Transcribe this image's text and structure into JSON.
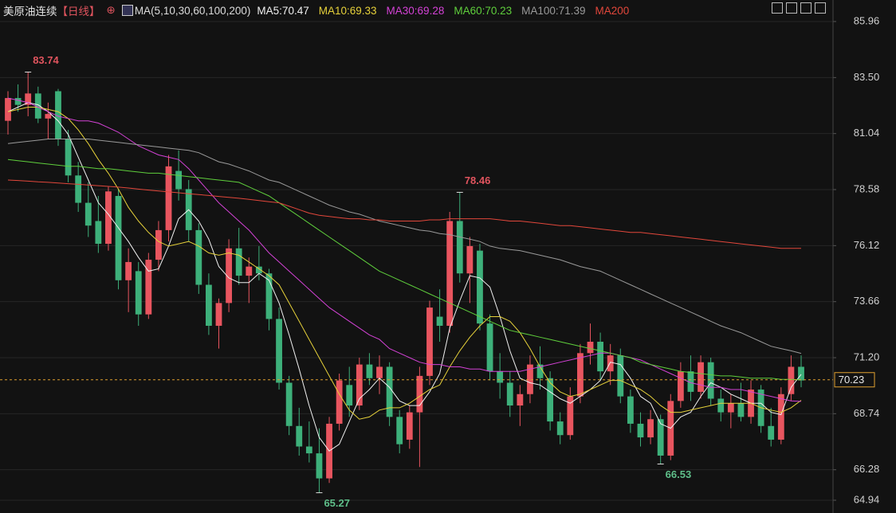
{
  "chart_data": {
    "type": "candlestick",
    "title": "美原油连续",
    "period": "【日线】",
    "indicator": "MA(5,10,30,60,100,200)",
    "up_color": "#e8555f",
    "down_color": "#3db07a",
    "ylim": [
      64.94,
      85.96
    ],
    "yticks": [
      85.96,
      {
        "value": 83.5,
        "label": "83.50"
      },
      81.04,
      78.58,
      76.12,
      73.66,
      {
        "value": 71.2,
        "label": "71.20"
      },
      68.74,
      66.28,
      64.94
    ],
    "grid": true,
    "last_price": 70.23,
    "ohlc": [
      [
        81.6,
        82.9,
        81.0,
        82.6
      ],
      [
        82.6,
        83.2,
        82.0,
        82.3
      ],
      [
        82.3,
        83.74,
        81.8,
        82.8
      ],
      [
        82.8,
        83.1,
        81.5,
        81.7
      ],
      [
        81.7,
        82.4,
        80.8,
        81.9
      ],
      [
        82.9,
        83.0,
        80.5,
        80.8
      ],
      [
        80.8,
        81.2,
        78.9,
        79.2
      ],
      [
        79.2,
        79.8,
        77.6,
        78.0
      ],
      [
        78.0,
        78.9,
        76.5,
        77.0
      ],
      [
        77.2,
        78.3,
        75.8,
        76.2
      ],
      [
        76.2,
        78.7,
        75.9,
        78.5
      ],
      [
        78.3,
        78.6,
        74.2,
        74.6
      ],
      [
        74.6,
        76.0,
        73.2,
        75.4
      ],
      [
        75.0,
        75.4,
        72.6,
        73.1
      ],
      [
        73.1,
        75.8,
        72.9,
        75.5
      ],
      [
        75.5,
        77.2,
        75.0,
        76.8
      ],
      [
        76.8,
        80.1,
        76.3,
        79.6
      ],
      [
        79.4,
        80.3,
        78.1,
        78.6
      ],
      [
        78.6,
        79.0,
        76.3,
        76.8
      ],
      [
        76.8,
        77.1,
        74.0,
        74.4
      ],
      [
        74.4,
        74.9,
        72.2,
        72.6
      ],
      [
        72.6,
        73.8,
        71.6,
        73.6
      ],
      [
        73.6,
        76.4,
        73.2,
        76.0
      ],
      [
        76.0,
        76.9,
        74.4,
        74.8
      ],
      [
        74.8,
        75.6,
        73.6,
        75.2
      ],
      [
        75.2,
        76.1,
        74.6,
        74.9
      ],
      [
        74.9,
        75.1,
        72.4,
        72.9
      ],
      [
        72.9,
        73.4,
        69.8,
        70.1
      ],
      [
        70.1,
        70.4,
        67.8,
        68.2
      ],
      [
        68.2,
        69.0,
        66.9,
        67.3
      ],
      [
        67.3,
        68.4,
        66.6,
        67.0
      ],
      [
        67.0,
        68.1,
        65.27,
        65.9
      ],
      [
        65.9,
        68.6,
        65.7,
        68.3
      ],
      [
        68.3,
        70.5,
        68.0,
        70.2
      ],
      [
        70.0,
        70.8,
        68.6,
        69.1
      ],
      [
        69.1,
        71.2,
        68.9,
        70.9
      ],
      [
        70.9,
        71.4,
        70.0,
        70.3
      ],
      [
        70.3,
        71.3,
        69.6,
        70.8
      ],
      [
        70.8,
        71.0,
        68.2,
        68.6
      ],
      [
        68.6,
        68.9,
        67.0,
        67.4
      ],
      [
        67.6,
        69.1,
        67.2,
        68.8
      ],
      [
        68.8,
        70.8,
        66.4,
        70.4
      ],
      [
        70.4,
        73.7,
        70.0,
        73.4
      ],
      [
        73.0,
        74.2,
        71.9,
        72.6
      ],
      [
        72.6,
        77.6,
        72.3,
        77.2
      ],
      [
        77.2,
        78.46,
        74.5,
        74.9
      ],
      [
        74.9,
        76.5,
        73.6,
        76.1
      ],
      [
        75.9,
        76.2,
        72.4,
        72.7
      ],
      [
        72.7,
        73.1,
        70.2,
        70.6
      ],
      [
        70.6,
        71.4,
        69.4,
        70.1
      ],
      [
        70.1,
        70.6,
        68.6,
        69.1
      ],
      [
        69.1,
        70.0,
        68.2,
        69.6
      ],
      [
        69.6,
        71.3,
        69.2,
        70.9
      ],
      [
        70.9,
        71.7,
        69.8,
        70.3
      ],
      [
        70.3,
        70.6,
        68.0,
        68.4
      ],
      [
        68.4,
        68.8,
        67.4,
        67.8
      ],
      [
        67.8,
        69.9,
        67.6,
        69.5
      ],
      [
        69.5,
        71.8,
        69.2,
        71.4
      ],
      [
        71.4,
        72.7,
        70.9,
        71.9
      ],
      [
        71.9,
        72.3,
        70.2,
        70.6
      ],
      [
        70.6,
        71.8,
        70.0,
        71.3
      ],
      [
        71.3,
        71.6,
        69.2,
        69.5
      ],
      [
        69.5,
        69.8,
        67.9,
        68.3
      ],
      [
        68.3,
        68.8,
        67.3,
        67.7
      ],
      [
        67.7,
        68.9,
        67.4,
        68.5
      ],
      [
        68.5,
        68.7,
        66.53,
        66.9
      ],
      [
        66.9,
        69.6,
        66.7,
        69.3
      ],
      [
        69.3,
        71.0,
        69.0,
        70.6
      ],
      [
        70.6,
        71.3,
        69.3,
        69.7
      ],
      [
        69.7,
        71.3,
        69.4,
        71.0
      ],
      [
        71.0,
        71.2,
        69.1,
        69.4
      ],
      [
        69.4,
        69.8,
        68.4,
        68.8
      ],
      [
        68.8,
        69.6,
        68.1,
        69.2
      ],
      [
        69.2,
        70.1,
        68.4,
        68.6
      ],
      [
        68.6,
        70.2,
        68.3,
        69.8
      ],
      [
        69.8,
        70.0,
        67.9,
        68.2
      ],
      [
        68.2,
        69.0,
        67.3,
        67.6
      ],
      [
        67.6,
        69.9,
        67.4,
        69.6
      ],
      [
        69.6,
        71.3,
        69.3,
        70.8
      ],
      [
        70.8,
        71.3,
        69.9,
        70.2
      ]
    ],
    "series": [
      {
        "name": "MA5:70.47",
        "color": "#f0f0f0",
        "values": [
          82.0,
          82.2,
          82.4,
          82.3,
          82.0,
          81.6,
          81.0,
          80.0,
          79.0,
          78.0,
          77.5,
          76.9,
          76.3,
          75.6,
          75.0,
          75.1,
          76.1,
          77.3,
          77.7,
          77.2,
          76.4,
          75.2,
          74.7,
          74.5,
          74.5,
          74.9,
          74.6,
          73.6,
          72.2,
          70.7,
          69.1,
          67.7,
          67.1,
          67.4,
          68.4,
          69.4,
          69.8,
          70.3,
          69.9,
          69.3,
          69.1,
          69.1,
          69.7,
          70.5,
          72.5,
          73.7,
          74.8,
          74.7,
          74.3,
          73.0,
          71.5,
          70.3,
          70.1,
          70.0,
          69.7,
          69.4,
          69.2,
          69.5,
          69.8,
          70.2,
          71.0,
          70.9,
          70.3,
          69.5,
          69.2,
          68.3,
          68.1,
          68.6,
          68.8,
          69.5,
          70.1,
          69.9,
          69.6,
          69.4,
          69.2,
          69.2,
          68.8,
          68.7,
          69.9,
          70.47
        ]
      },
      {
        "name": "MA10:69.33",
        "color": "#e6d13a",
        "values": [
          82.0,
          82.1,
          82.2,
          82.2,
          82.1,
          82.0,
          81.7,
          81.2,
          80.6,
          79.9,
          79.3,
          78.6,
          77.8,
          77.2,
          76.7,
          76.3,
          76.1,
          76.2,
          76.3,
          76.1,
          75.8,
          75.7,
          75.8,
          75.7,
          75.4,
          75.1,
          74.8,
          74.4,
          73.6,
          72.8,
          72.0,
          71.2,
          70.4,
          69.6,
          68.9,
          68.5,
          68.6,
          68.9,
          69.0,
          69.0,
          69.2,
          69.5,
          69.8,
          70.0,
          70.8,
          71.5,
          72.1,
          72.6,
          73.0,
          73.0,
          72.8,
          72.3,
          71.6,
          70.8,
          70.1,
          69.7,
          69.5,
          69.6,
          69.8,
          70.0,
          70.2,
          70.2,
          70.0,
          69.8,
          69.5,
          69.1,
          68.8,
          68.8,
          68.9,
          69.0,
          69.1,
          69.2,
          69.2,
          69.2,
          69.2,
          69.0,
          68.9,
          68.8,
          69.0,
          69.33
        ]
      },
      {
        "name": "MA30:69.28",
        "color": "#d442d6",
        "values": [
          82.6,
          82.5,
          82.4,
          82.2,
          82.0,
          81.8,
          81.7,
          81.6,
          81.6,
          81.5,
          81.3,
          81.1,
          80.8,
          80.5,
          80.3,
          80.1,
          80.0,
          79.9,
          79.5,
          79.0,
          78.5,
          78.0,
          77.6,
          77.2,
          76.8,
          76.3,
          75.8,
          75.4,
          75.0,
          74.6,
          74.2,
          73.8,
          73.4,
          73.1,
          72.8,
          72.5,
          72.2,
          72.0,
          71.6,
          71.4,
          71.2,
          71.0,
          70.9,
          70.9,
          70.8,
          70.8,
          70.7,
          70.7,
          70.6,
          70.6,
          70.6,
          70.6,
          70.7,
          70.8,
          70.9,
          71.0,
          71.1,
          71.2,
          71.3,
          71.4,
          71.4,
          71.3,
          71.2,
          71.1,
          70.9,
          70.7,
          70.5,
          70.3,
          70.1,
          70.0,
          69.9,
          69.9,
          69.8,
          69.8,
          69.7,
          69.6,
          69.5,
          69.4,
          69.3,
          69.28
        ]
      },
      {
        "name": "MA60:70.23",
        "color": "#5fcf3c",
        "values": [
          79.9,
          79.85,
          79.8,
          79.75,
          79.7,
          79.65,
          79.6,
          79.6,
          79.55,
          79.5,
          79.5,
          79.45,
          79.4,
          79.35,
          79.3,
          79.3,
          79.25,
          79.2,
          79.15,
          79.1,
          79.05,
          79.0,
          78.95,
          78.9,
          78.7,
          78.5,
          78.3,
          78.0,
          77.7,
          77.4,
          77.1,
          76.8,
          76.5,
          76.2,
          75.9,
          75.6,
          75.3,
          75.0,
          74.8,
          74.6,
          74.4,
          74.2,
          74.0,
          73.8,
          73.6,
          73.4,
          73.2,
          73.0,
          72.8,
          72.6,
          72.4,
          72.3,
          72.2,
          72.1,
          72.0,
          71.9,
          71.8,
          71.7,
          71.6,
          71.5,
          71.4,
          71.3,
          71.2,
          71.0,
          70.9,
          70.8,
          70.7,
          70.6,
          70.55,
          70.5,
          70.45,
          70.4,
          70.4,
          70.35,
          70.3,
          70.3,
          70.3,
          70.25,
          70.25,
          70.23
        ]
      },
      {
        "name": "MA100:71.39",
        "color": "#9a9a9a",
        "values": [
          80.6,
          80.65,
          80.7,
          80.75,
          80.8,
          80.8,
          80.8,
          80.8,
          80.8,
          80.75,
          80.7,
          80.65,
          80.6,
          80.55,
          80.5,
          80.45,
          80.4,
          80.35,
          80.3,
          80.2,
          80.0,
          79.8,
          79.7,
          79.55,
          79.4,
          79.2,
          79.0,
          78.9,
          78.7,
          78.5,
          78.3,
          78.1,
          77.9,
          77.75,
          77.6,
          77.5,
          77.35,
          77.2,
          77.1,
          77.0,
          76.9,
          76.8,
          76.75,
          76.65,
          76.6,
          76.5,
          76.4,
          76.3,
          76.1,
          76.0,
          75.95,
          75.9,
          75.8,
          75.7,
          75.6,
          75.5,
          75.35,
          75.2,
          75.1,
          75.0,
          74.8,
          74.6,
          74.4,
          74.2,
          74.0,
          73.8,
          73.6,
          73.4,
          73.2,
          73.0,
          72.8,
          72.6,
          72.45,
          72.3,
          72.1,
          71.9,
          71.7,
          71.6,
          71.5,
          71.39
        ]
      },
      {
        "name": "MA200",
        "color": "#e2473b",
        "values": [
          79.0,
          78.98,
          78.95,
          78.92,
          78.9,
          78.87,
          78.84,
          78.81,
          78.78,
          78.75,
          78.72,
          78.69,
          78.65,
          78.6,
          78.56,
          78.52,
          78.48,
          78.44,
          78.4,
          78.36,
          78.32,
          78.28,
          78.24,
          78.2,
          78.15,
          78.1,
          78.05,
          78.0,
          77.85,
          77.7,
          77.55,
          77.45,
          77.4,
          77.35,
          77.3,
          77.3,
          77.25,
          77.25,
          77.2,
          77.2,
          77.2,
          77.2,
          77.25,
          77.25,
          77.3,
          77.3,
          77.3,
          77.3,
          77.3,
          77.25,
          77.2,
          77.2,
          77.15,
          77.1,
          77.05,
          77.0,
          77.0,
          76.95,
          76.9,
          76.85,
          76.8,
          76.75,
          76.7,
          76.7,
          76.65,
          76.6,
          76.55,
          76.5,
          76.45,
          76.4,
          76.35,
          76.3,
          76.25,
          76.2,
          76.15,
          76.1,
          76.05,
          76.0,
          76.0,
          76.0
        ]
      }
    ]
  }
}
